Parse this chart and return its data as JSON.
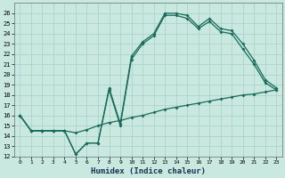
{
  "xlabel": "Humidex (Indice chaleur)",
  "bg_color": "#c8e8e0",
  "grid_color": "#a8cfc8",
  "line_color": "#1a6b5a",
  "xlim": [
    -0.5,
    23.5
  ],
  "ylim": [
    12,
    27
  ],
  "yticks": [
    12,
    13,
    14,
    15,
    16,
    17,
    18,
    19,
    20,
    21,
    22,
    23,
    24,
    25,
    26
  ],
  "xticks": [
    0,
    1,
    2,
    3,
    4,
    5,
    6,
    7,
    8,
    9,
    10,
    11,
    12,
    13,
    14,
    15,
    16,
    17,
    18,
    19,
    20,
    21,
    22,
    23
  ],
  "line1_x": [
    0,
    1,
    2,
    3,
    4,
    5,
    6,
    7,
    8,
    9,
    10,
    11,
    12,
    13,
    14,
    15,
    16,
    17,
    18,
    19,
    20,
    21,
    22,
    23
  ],
  "line1_y": [
    16.0,
    14.5,
    14.5,
    14.5,
    14.5,
    14.3,
    14.6,
    15.0,
    15.3,
    15.5,
    15.8,
    16.0,
    16.3,
    16.6,
    16.8,
    17.0,
    17.2,
    17.4,
    17.6,
    17.8,
    18.0,
    18.1,
    18.3,
    18.5
  ],
  "line2_x": [
    0,
    1,
    2,
    3,
    4,
    5,
    6,
    7,
    8,
    9,
    10,
    11,
    12,
    13,
    14,
    15,
    16,
    17,
    18,
    19,
    20,
    21,
    22,
    23
  ],
  "line2_y": [
    16.0,
    14.5,
    14.5,
    14.5,
    14.5,
    12.2,
    13.3,
    13.3,
    18.5,
    15.0,
    21.5,
    23.0,
    23.8,
    25.8,
    25.8,
    25.5,
    24.5,
    25.2,
    24.2,
    24.0,
    22.5,
    21.0,
    19.2,
    18.5
  ],
  "line3_x": [
    0,
    1,
    2,
    3,
    4,
    5,
    6,
    7,
    8,
    9,
    10,
    11,
    12,
    13,
    14,
    15,
    16,
    17,
    18,
    19,
    20,
    21,
    22,
    23
  ],
  "line3_y": [
    16.0,
    14.5,
    14.5,
    14.5,
    14.5,
    12.2,
    13.3,
    13.3,
    18.7,
    15.2,
    21.8,
    23.2,
    24.0,
    26.0,
    26.0,
    25.8,
    24.7,
    25.5,
    24.5,
    24.3,
    23.0,
    21.4,
    19.5,
    18.7
  ]
}
